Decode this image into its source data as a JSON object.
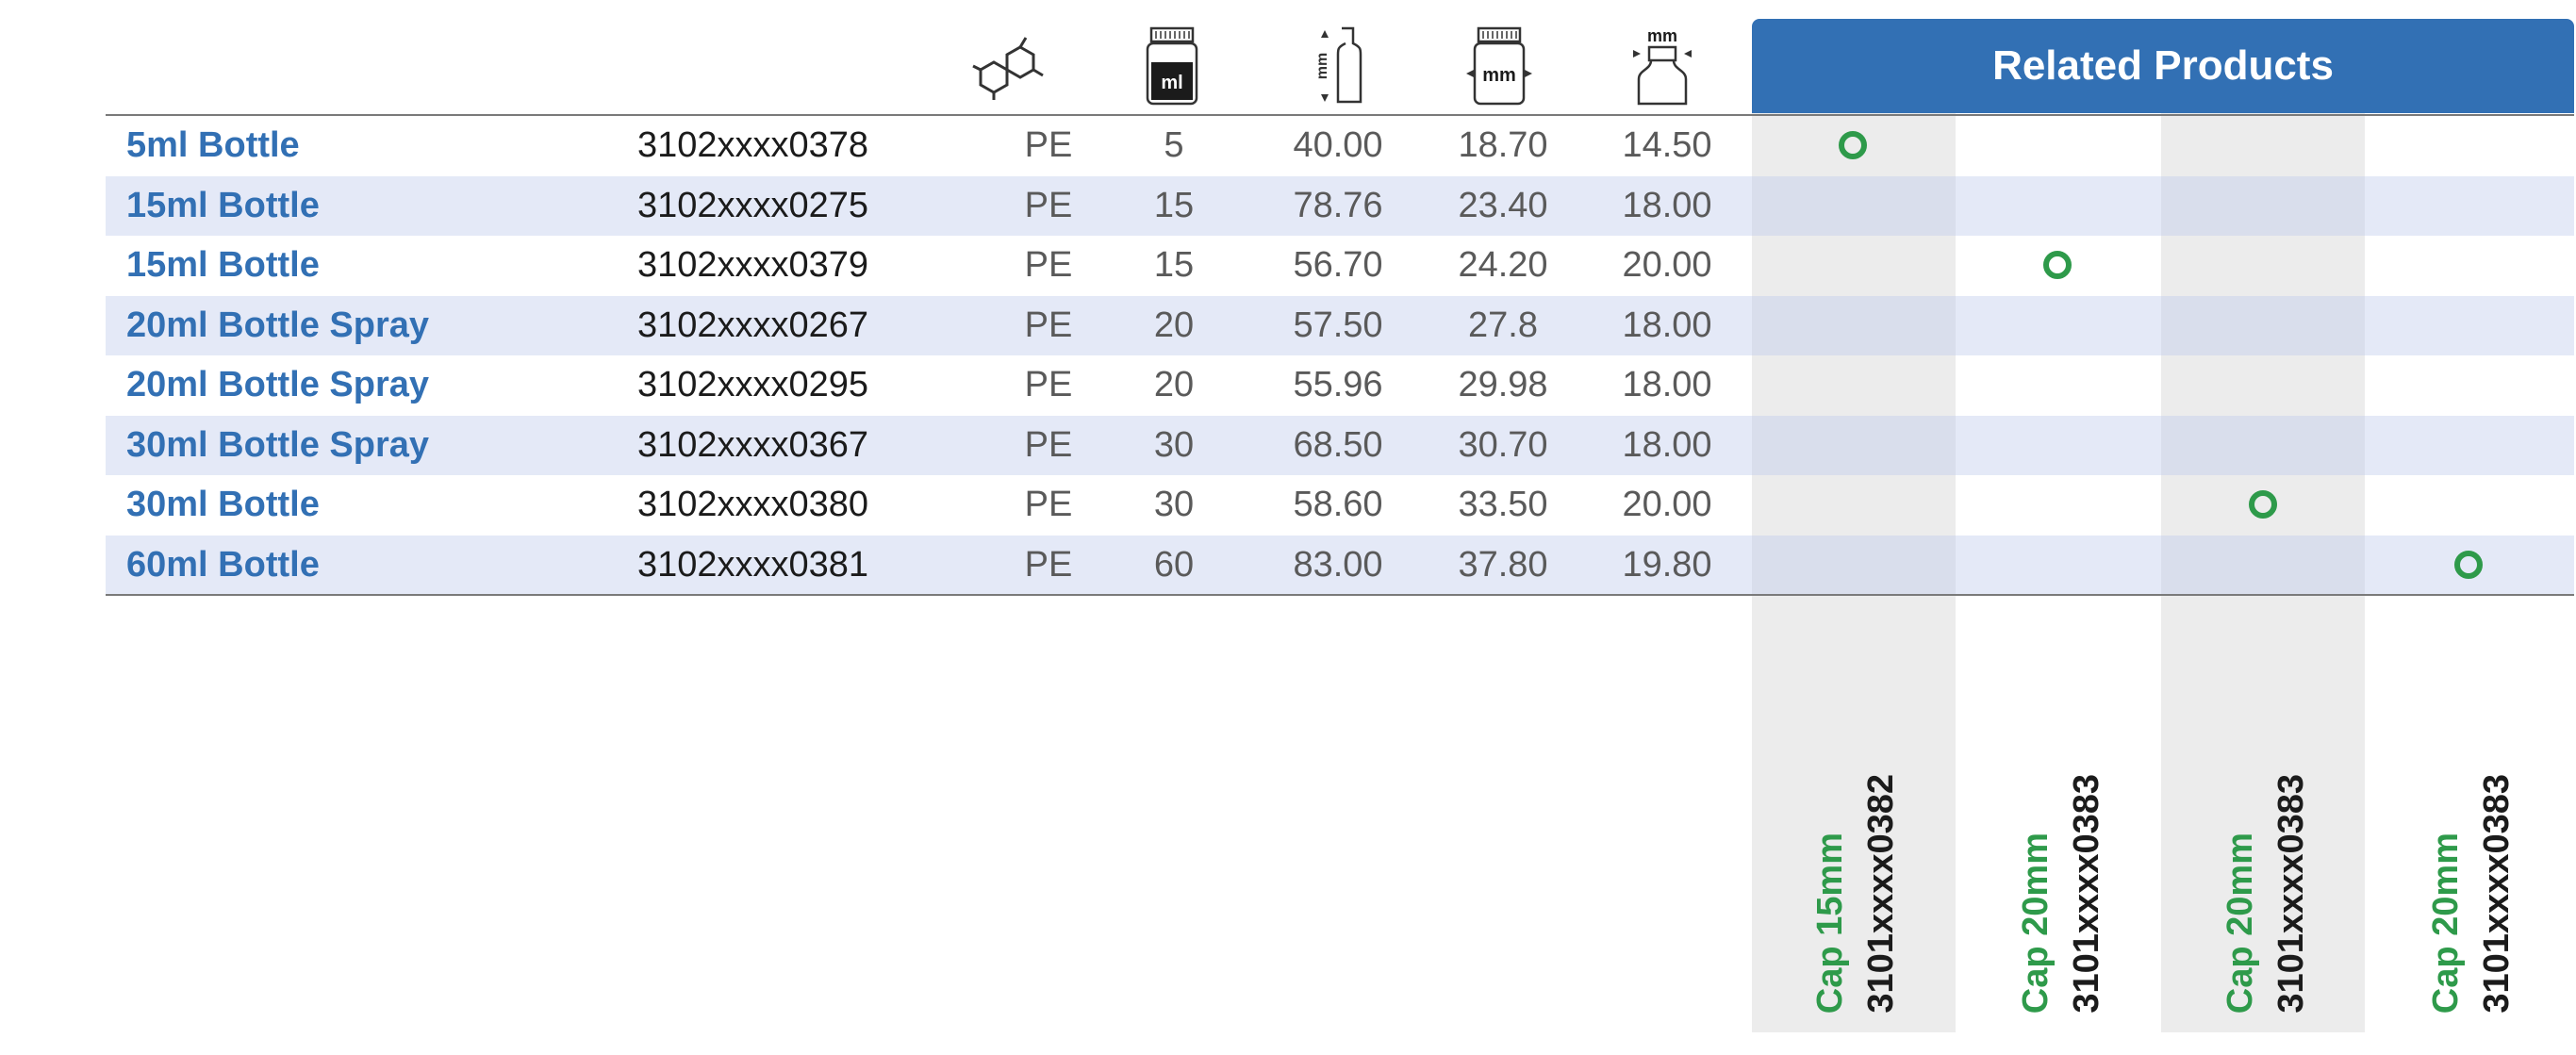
{
  "header": {
    "related_title": "Related Products",
    "icons": [
      "molecule-icon",
      "volume-ml-icon",
      "height-mm-icon",
      "width-mm-icon",
      "neck-mm-icon"
    ],
    "icon_labels": {
      "volume": "ml",
      "height": "mm",
      "width": "mm",
      "neck": "mm"
    }
  },
  "colors": {
    "accent": "#3270b4",
    "ring": "#2e9a4a",
    "stripe": "#dfe5f4",
    "related_shade": "#ececec"
  },
  "rows": [
    {
      "name": "5ml Bottle",
      "code": "3102xxxx0378",
      "material": "PE",
      "volume": "5",
      "height": "40.00",
      "width": "18.70",
      "neck": "14.50",
      "related": 0
    },
    {
      "name": "15ml Bottle",
      "code": "3102xxxx0275",
      "material": "PE",
      "volume": "15",
      "height": "78.76",
      "width": "23.40",
      "neck": "18.00",
      "related": null
    },
    {
      "name": "15ml Bottle",
      "code": "3102xxxx0379",
      "material": "PE",
      "volume": "15",
      "height": "56.70",
      "width": "24.20",
      "neck": "20.00",
      "related": 1
    },
    {
      "name": "20ml Bottle Spray",
      "code": "3102xxxx0267",
      "material": "PE",
      "volume": "20",
      "height": "57.50",
      "width": "27.8",
      "neck": "18.00",
      "related": null
    },
    {
      "name": "20ml Bottle Spray",
      "code": "3102xxxx0295",
      "material": "PE",
      "volume": "20",
      "height": "55.96",
      "width": "29.98",
      "neck": "18.00",
      "related": null
    },
    {
      "name": "30ml Bottle Spray",
      "code": "3102xxxx0367",
      "material": "PE",
      "volume": "30",
      "height": "68.50",
      "width": "30.70",
      "neck": "18.00",
      "related": null
    },
    {
      "name": "30ml Bottle",
      "code": "3102xxxx0380",
      "material": "PE",
      "volume": "30",
      "height": "58.60",
      "width": "33.50",
      "neck": "20.00",
      "related": 2
    },
    {
      "name": "60ml Bottle",
      "code": "3102xxxx0381",
      "material": "PE",
      "volume": "60",
      "height": "83.00",
      "width": "37.80",
      "neck": "19.80",
      "related": 3
    }
  ],
  "related_products": [
    {
      "cap": "Cap 15mm",
      "code": "3101xxxx0382"
    },
    {
      "cap": "Cap 20mm",
      "code": "3101xxxx0383"
    },
    {
      "cap": "Cap 20mm",
      "code": "3101xxxx0383"
    },
    {
      "cap": "Cap 20mm",
      "code": "3101xxxx0383"
    }
  ]
}
